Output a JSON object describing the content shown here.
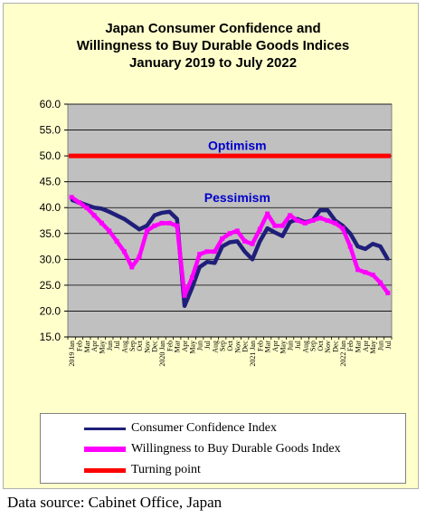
{
  "chart_data": {
    "type": "line",
    "title_lines": [
      "Japan Consumer Confidence and",
      "Willingness to Buy Durable Goods Indices",
      "January 2019 to July 2022"
    ],
    "ylim": [
      15.0,
      60.0
    ],
    "y_ticks": [
      "15.0",
      "20.0",
      "25.0",
      "30.0",
      "35.0",
      "40.0",
      "45.0",
      "50.0",
      "55.0",
      "60.0"
    ],
    "grid": true,
    "x_labels": [
      "2019 Jan",
      "Feb",
      "Mar",
      "Apr",
      "May",
      "Jun",
      "Jul",
      "Aug",
      "Sep",
      "Oct",
      "Nov",
      "Dec",
      "2020 Jan",
      "Feb",
      "Mar",
      "Apr",
      "May",
      "Jun",
      "Jul",
      "Aug",
      "Sep",
      "Oct",
      "Nov",
      "Dec",
      "2021 Jan",
      "Feb",
      "Mar",
      "Apr",
      "May",
      "Jun",
      "Jul",
      "Aug",
      "Sep",
      "Oct",
      "Nov",
      "Dec",
      "2022 Jan",
      "Feb",
      "Mar",
      "Apr",
      "May",
      "Jun",
      "Jul"
    ],
    "series": [
      {
        "name": "Consumer Confidence Index",
        "color": "#1f1f7a",
        "values": [
          41.5,
          41.0,
          40.5,
          40.0,
          39.8,
          39.2,
          38.5,
          37.8,
          36.8,
          35.8,
          36.5,
          38.5,
          39.0,
          39.2,
          37.8,
          21.0,
          24.5,
          28.5,
          29.5,
          29.3,
          32.5,
          33.3,
          33.5,
          31.5,
          30.0,
          33.5,
          36.0,
          35.2,
          34.5,
          37.2,
          37.8,
          37.2,
          37.5,
          39.5,
          39.5,
          37.5,
          36.5,
          35.0,
          32.5,
          32.0,
          33.0,
          32.5,
          30.0
        ]
      },
      {
        "name": "Willingness to Buy Durable Goods Index",
        "color": "#ff00ff",
        "values": [
          42.0,
          41.0,
          40.0,
          38.5,
          37.0,
          35.5,
          33.5,
          31.5,
          28.5,
          30.5,
          35.5,
          36.5,
          37.0,
          37.0,
          36.5,
          23.0,
          26.5,
          31.0,
          31.5,
          31.5,
          34.0,
          35.0,
          35.5,
          33.5,
          33.0,
          35.8,
          38.8,
          36.5,
          36.5,
          38.5,
          37.5,
          37.0,
          37.5,
          38.0,
          37.5,
          37.0,
          36.0,
          32.5,
          28.0,
          27.5,
          27.0,
          25.5,
          23.5
        ]
      },
      {
        "name": "Turning point",
        "color": "#ff0000",
        "values": [
          50,
          50
        ]
      }
    ],
    "annotations": [
      {
        "text": "Optimism",
        "x_index": 22,
        "y": 52.0
      },
      {
        "text": "Pessimism",
        "x_index": 22,
        "y": 42.0
      }
    ]
  },
  "legend_title": "",
  "source": "Data source: Cabinet Office, Japan",
  "colors": {
    "frame_background": "#ffffcc",
    "plot_background": "#c0c0c0",
    "annotation_text": "#0000cc"
  }
}
